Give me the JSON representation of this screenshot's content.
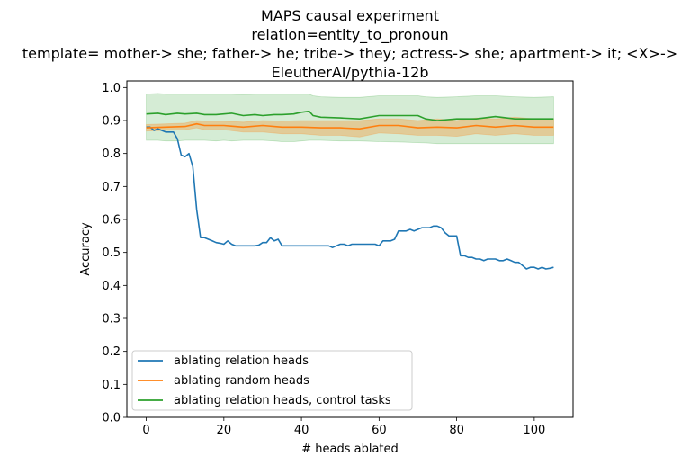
{
  "chart_data": {
    "type": "line",
    "title_lines": [
      "MAPS causal experiment",
      "relation=entity_to_pronoun",
      "template= mother-> she; father-> he; tribe-> they; actress-> she; apartment-> it; <X>->",
      "EleutherAI/pythia-12b"
    ],
    "xlabel": "# heads ablated",
    "ylabel": "Accuracy",
    "xlim": [
      -5,
      110
    ],
    "ylim": [
      0.0,
      1.02
    ],
    "xticks": [
      0,
      20,
      40,
      60,
      80,
      100
    ],
    "yticks": [
      0.0,
      0.1,
      0.2,
      0.3,
      0.4,
      0.5,
      0.6,
      0.7,
      0.8,
      0.9,
      1.0
    ],
    "grid": false,
    "legend_position": "lower-left",
    "series": [
      {
        "name": "ablating relation heads",
        "color": "#1f77b4",
        "x": [
          0,
          1,
          2,
          3,
          4,
          5,
          6,
          7,
          8,
          9,
          10,
          11,
          12,
          13,
          14,
          15,
          16,
          17,
          18,
          19,
          20,
          21,
          22,
          23,
          24,
          25,
          26,
          27,
          28,
          29,
          30,
          31,
          32,
          33,
          34,
          35,
          36,
          37,
          38,
          39,
          40,
          41,
          42,
          43,
          44,
          45,
          46,
          47,
          48,
          49,
          50,
          51,
          52,
          53,
          54,
          55,
          56,
          57,
          58,
          59,
          60,
          61,
          62,
          63,
          64,
          65,
          66,
          67,
          68,
          69,
          70,
          71,
          72,
          73,
          74,
          75,
          76,
          77,
          78,
          79,
          80,
          81,
          82,
          83,
          84,
          85,
          86,
          87,
          88,
          89,
          90,
          91,
          92,
          93,
          94,
          95,
          96,
          97,
          98,
          99,
          100,
          101,
          102,
          103,
          104,
          105
        ],
        "values": [
          0.88,
          0.88,
          0.87,
          0.875,
          0.87,
          0.865,
          0.865,
          0.865,
          0.845,
          0.795,
          0.79,
          0.8,
          0.76,
          0.63,
          0.545,
          0.545,
          0.54,
          0.535,
          0.53,
          0.528,
          0.525,
          0.535,
          0.525,
          0.52,
          0.52,
          0.52,
          0.52,
          0.52,
          0.52,
          0.522,
          0.53,
          0.53,
          0.545,
          0.535,
          0.54,
          0.52,
          0.52,
          0.52,
          0.52,
          0.52,
          0.52,
          0.52,
          0.52,
          0.52,
          0.52,
          0.52,
          0.52,
          0.52,
          0.515,
          0.52,
          0.525,
          0.525,
          0.52,
          0.525,
          0.525,
          0.525,
          0.525,
          0.525,
          0.525,
          0.525,
          0.52,
          0.535,
          0.535,
          0.535,
          0.54,
          0.565,
          0.565,
          0.565,
          0.57,
          0.565,
          0.57,
          0.575,
          0.575,
          0.575,
          0.58,
          0.58,
          0.575,
          0.56,
          0.55,
          0.55,
          0.55,
          0.49,
          0.49,
          0.485,
          0.485,
          0.48,
          0.48,
          0.475,
          0.48,
          0.48,
          0.48,
          0.475,
          0.475,
          0.48,
          0.475,
          0.47,
          0.47,
          0.46,
          0.45,
          0.455,
          0.455,
          0.45,
          0.455,
          0.45,
          0.452,
          0.455
        ],
        "x_dense_note": "",
        "x_scale": 1
      },
      {
        "name": "ablating random heads",
        "color": "#ff7f0e",
        "x": [
          0,
          5,
          10,
          13,
          15,
          20,
          25,
          30,
          35,
          40,
          45,
          50,
          55,
          60,
          65,
          70,
          75,
          80,
          85,
          90,
          95,
          100,
          105
        ],
        "values": [
          0.878,
          0.88,
          0.882,
          0.89,
          0.885,
          0.885,
          0.88,
          0.885,
          0.88,
          0.88,
          0.878,
          0.878,
          0.875,
          0.885,
          0.885,
          0.878,
          0.88,
          0.878,
          0.885,
          0.88,
          0.885,
          0.88,
          0.88
        ],
        "band_low": [
          0.868,
          0.87,
          0.872,
          0.878,
          0.872,
          0.872,
          0.865,
          0.865,
          0.86,
          0.86,
          0.855,
          0.855,
          0.85,
          0.862,
          0.86,
          0.855,
          0.855,
          0.852,
          0.86,
          0.855,
          0.86,
          0.855,
          0.855
        ],
        "band_high": [
          0.888,
          0.89,
          0.892,
          0.9,
          0.898,
          0.898,
          0.895,
          0.9,
          0.898,
          0.9,
          0.9,
          0.9,
          0.9,
          0.905,
          0.905,
          0.9,
          0.905,
          0.9,
          0.908,
          0.905,
          0.91,
          0.905,
          0.905
        ]
      },
      {
        "name": "ablating relation heads, control tasks",
        "color": "#2ca02c",
        "x": [
          0,
          3,
          5,
          8,
          10,
          13,
          15,
          18,
          20,
          22,
          25,
          28,
          30,
          33,
          35,
          38,
          40,
          42,
          43,
          45,
          50,
          55,
          60,
          65,
          70,
          72,
          75,
          80,
          85,
          90,
          95,
          100,
          105
        ],
        "values": [
          0.92,
          0.922,
          0.918,
          0.922,
          0.92,
          0.922,
          0.918,
          0.918,
          0.92,
          0.922,
          0.915,
          0.918,
          0.915,
          0.918,
          0.918,
          0.92,
          0.925,
          0.928,
          0.915,
          0.91,
          0.908,
          0.905,
          0.915,
          0.915,
          0.915,
          0.905,
          0.9,
          0.905,
          0.905,
          0.912,
          0.905,
          0.905,
          0.905
        ],
        "band_low": [
          0.84,
          0.84,
          0.838,
          0.838,
          0.84,
          0.84,
          0.84,
          0.838,
          0.84,
          0.838,
          0.84,
          0.84,
          0.84,
          0.838,
          0.836,
          0.836,
          0.838,
          0.84,
          0.84,
          0.84,
          0.838,
          0.838,
          0.836,
          0.835,
          0.833,
          0.832,
          0.83,
          0.83,
          0.83,
          0.83,
          0.83,
          0.83,
          0.83
        ],
        "band_high": [
          0.98,
          0.982,
          0.98,
          0.98,
          0.98,
          0.98,
          0.98,
          0.98,
          0.98,
          0.98,
          0.978,
          0.98,
          0.98,
          0.98,
          0.98,
          0.98,
          0.98,
          0.98,
          0.975,
          0.972,
          0.97,
          0.97,
          0.975,
          0.975,
          0.975,
          0.972,
          0.97,
          0.972,
          0.975,
          0.975,
          0.972,
          0.97,
          0.972
        ]
      }
    ]
  }
}
